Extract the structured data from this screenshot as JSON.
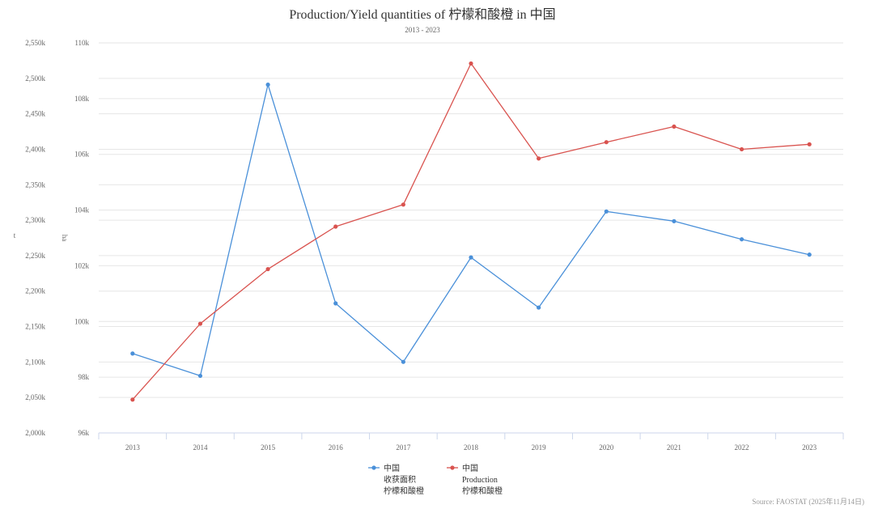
{
  "chart_data": {
    "type": "line",
    "title": "Production/Yield quantities of 柠檬和酸橙 in 中国",
    "subtitle": "2013 - 2023",
    "credit": "Source: FAOSTAT (2025年11月14日)",
    "categories": [
      "2013",
      "2014",
      "2015",
      "2016",
      "2017",
      "2018",
      "2019",
      "2020",
      "2021",
      "2022",
      "2023"
    ],
    "axes": {
      "left_outer": {
        "label": "t",
        "range": [
          2000000,
          2550000
        ],
        "ticks": [
          "2,000k",
          "2,050k",
          "2,100k",
          "2,150k",
          "2,200k",
          "2,250k",
          "2,300k",
          "2,350k",
          "2,400k",
          "2,450k",
          "2,500k",
          "2,550k"
        ]
      },
      "left_inner": {
        "label": "ha",
        "range": [
          96000,
          110000
        ],
        "ticks": [
          "96k",
          "98k",
          "100k",
          "102k",
          "104k",
          "106k",
          "108k",
          "110k"
        ]
      }
    },
    "series": [
      {
        "name_lines": [
          "中国",
          "收获面积",
          "柠檬和酸橙"
        ],
        "axis": "left_inner",
        "unit": "ha",
        "color": "#4a90d9",
        "values": [
          98850,
          98050,
          108500,
          100650,
          98550,
          102300,
          100500,
          103950,
          103600,
          102950,
          102400
        ]
      },
      {
        "name_lines": [
          "中国",
          "Production",
          "柠檬和酸橙"
        ],
        "axis": "left_outer",
        "unit": "t",
        "color": "#d9534f",
        "values": [
          2047000,
          2154000,
          2231000,
          2291000,
          2322000,
          2521000,
          2387000,
          2410000,
          2432000,
          2400000,
          2407000
        ]
      }
    ],
    "grid": true,
    "legend_position": "bottom-center"
  }
}
